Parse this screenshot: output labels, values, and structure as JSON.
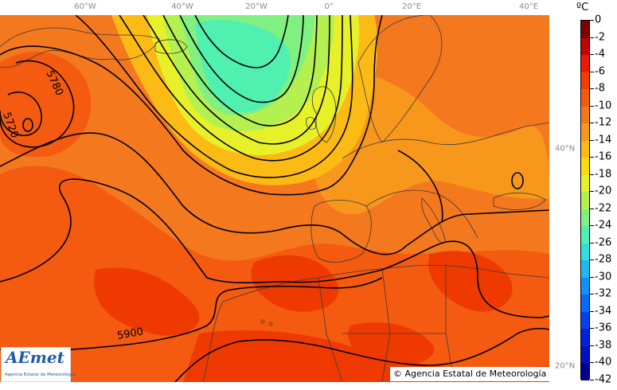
{
  "map": {
    "longitude_labels": [
      "60°W",
      "40°W",
      "20°W",
      "0°",
      "20°E",
      "40°E"
    ],
    "latitude_labels": [
      "40°N",
      "20°N"
    ],
    "contour_labels": [
      "5780",
      "5720",
      "5900"
    ],
    "colors": {
      "ocean_background": "#f4781e",
      "land_outline": "#3a3a3a",
      "contour_line": "#000000"
    }
  },
  "legend": {
    "unit": "ºC",
    "values": [
      "0",
      "-2",
      "-4",
      "-6",
      "-8",
      "-10",
      "-12",
      "-14",
      "-16",
      "-18",
      "-20",
      "-22",
      "-24",
      "-26",
      "-28",
      "-30",
      "-32",
      "-34",
      "-36",
      "-38",
      "-40",
      "-42"
    ],
    "colors": [
      "#7f0000",
      "#c40000",
      "#ee1800",
      "#f43c00",
      "#f45a10",
      "#f4781e",
      "#f7981c",
      "#fcba14",
      "#fcda0c",
      "#e8f02a",
      "#b4f050",
      "#80f080",
      "#50f0b0",
      "#30e0e0",
      "#20b8f0",
      "#1090f8",
      "#0868f8",
      "#0440f0",
      "#0020e0",
      "#0010c0",
      "#000090"
    ]
  },
  "logo": {
    "name": "AEmet",
    "subtitle": "Agencia Estatal de Meteorología"
  },
  "copyright": "© Agencia Estatal de Meteorología"
}
